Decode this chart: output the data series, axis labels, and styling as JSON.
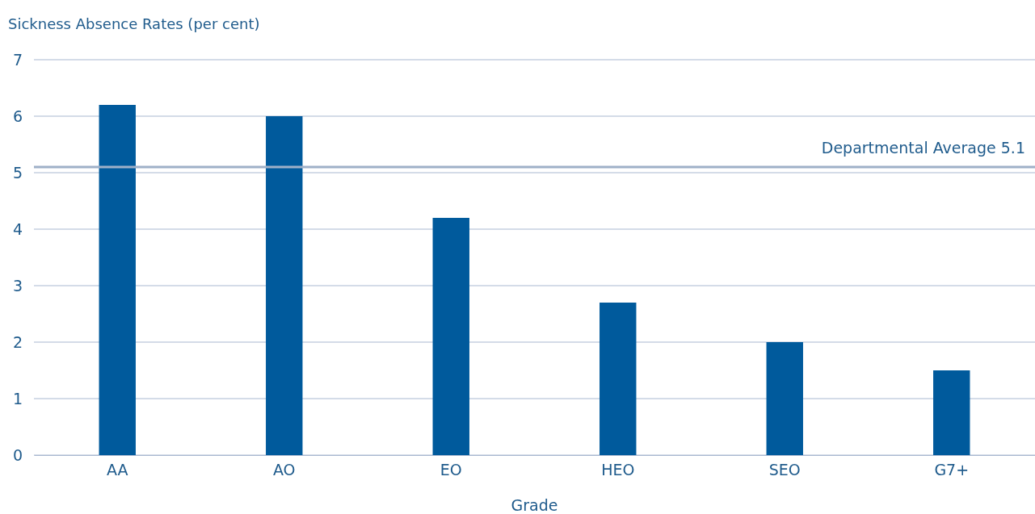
{
  "chart_data": {
    "type": "bar",
    "ylabel": "Sickness Absence Rates (per cent)",
    "xlabel": "Grade",
    "categories": [
      "AA",
      "AO",
      "EO",
      "HEO",
      "SEO",
      "G7+"
    ],
    "values": [
      6.2,
      6.0,
      4.2,
      2.7,
      2.0,
      1.5
    ],
    "color": "#005a9c",
    "ylim": [
      0,
      7
    ],
    "yticks": [
      0,
      1,
      2,
      3,
      4,
      5,
      6,
      7
    ],
    "grid": "y",
    "ref_lines": [
      {
        "axis": "y",
        "value": 5.1,
        "label": "Departmental Average  5.1",
        "color": "#9fb0c8"
      }
    ]
  }
}
